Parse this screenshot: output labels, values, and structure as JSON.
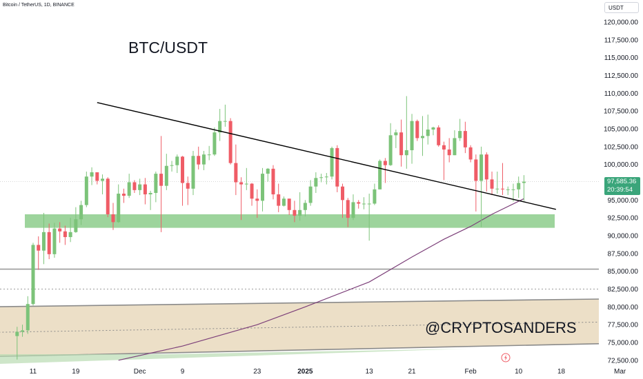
{
  "symbol": "Bitcoin / TetherUS, 1D, BINANCE",
  "currency": "USDT",
  "current_price": "97,585.36",
  "countdown": "20:39:54",
  "headline": "BTC/USDT",
  "watermark": "@CRYPTOSANDERS",
  "colors": {
    "up": "#7cc379",
    "down": "#ef5c66",
    "ma": "#7c3f79",
    "support_zone": "#8ccd8b",
    "range_band": "#e6d4b4",
    "price_tag": "#3aa57a"
  },
  "chart_data": {
    "type": "candlestick",
    "title": "BTC/USDT",
    "ylim": [
      72500,
      121500
    ],
    "y_ticks": [
      "120,000.00",
      "117,500.00",
      "115,000.00",
      "112,500.00",
      "110,000.00",
      "107,500.00",
      "105,000.00",
      "102,500.00",
      "100,000.00",
      "97,500.00",
      "95,000.00",
      "92,500.00",
      "90,000.00",
      "87,500.00",
      "85,000.00",
      "82,500.00",
      "80,000.00",
      "77,500.00",
      "75,000.00",
      "72,500.00"
    ],
    "x_labels": [
      "11",
      "19",
      "Dec",
      "9",
      "23",
      "2025",
      "13",
      "21",
      "Feb",
      "10",
      "18",
      "Mar"
    ],
    "candles": [
      {
        "date": "2024-11-08",
        "o": 75900,
        "h": 77200,
        "l": 72600,
        "c": 76500
      },
      {
        "date": "2024-11-09",
        "o": 76500,
        "h": 77500,
        "l": 75800,
        "c": 76700
      },
      {
        "date": "2024-11-10",
        "o": 76700,
        "h": 81500,
        "l": 76200,
        "c": 80400
      },
      {
        "date": "2024-11-11",
        "o": 80400,
        "h": 89000,
        "l": 80200,
        "c": 88700
      },
      {
        "date": "2024-11-12",
        "o": 88700,
        "h": 89900,
        "l": 85200,
        "c": 87900
      },
      {
        "date": "2024-11-13",
        "o": 87900,
        "h": 93200,
        "l": 86000,
        "c": 90500
      },
      {
        "date": "2024-11-14",
        "o": 90500,
        "h": 91700,
        "l": 86700,
        "c": 87400
      },
      {
        "date": "2024-11-15",
        "o": 87400,
        "h": 91800,
        "l": 86900,
        "c": 91000
      },
      {
        "date": "2024-11-16",
        "o": 91000,
        "h": 91900,
        "l": 89000,
        "c": 90600
      },
      {
        "date": "2024-11-17",
        "o": 90600,
        "h": 91400,
        "l": 88700,
        "c": 89800
      },
      {
        "date": "2024-11-18",
        "o": 89800,
        "h": 92500,
        "l": 89100,
        "c": 90500
      },
      {
        "date": "2024-11-19",
        "o": 90500,
        "h": 94000,
        "l": 90400,
        "c": 92300
      },
      {
        "date": "2024-11-20",
        "o": 92300,
        "h": 94900,
        "l": 91500,
        "c": 94300
      },
      {
        "date": "2024-11-21",
        "o": 94300,
        "h": 99000,
        "l": 94000,
        "c": 98300
      },
      {
        "date": "2024-11-22",
        "o": 98300,
        "h": 99600,
        "l": 97100,
        "c": 98900
      },
      {
        "date": "2024-11-23",
        "o": 98900,
        "h": 98900,
        "l": 97200,
        "c": 97700
      },
      {
        "date": "2024-11-24",
        "o": 97700,
        "h": 98600,
        "l": 95800,
        "c": 98000
      },
      {
        "date": "2024-11-25",
        "o": 98000,
        "h": 98200,
        "l": 92600,
        "c": 93000
      },
      {
        "date": "2024-11-26",
        "o": 93000,
        "h": 94600,
        "l": 90800,
        "c": 91900
      },
      {
        "date": "2024-11-27",
        "o": 91900,
        "h": 97200,
        "l": 91800,
        "c": 95900
      },
      {
        "date": "2024-11-28",
        "o": 95900,
        "h": 96600,
        "l": 94600,
        "c": 95600
      },
      {
        "date": "2024-11-29",
        "o": 95600,
        "h": 98700,
        "l": 95300,
        "c": 97500
      },
      {
        "date": "2024-11-30",
        "o": 97500,
        "h": 97800,
        "l": 96000,
        "c": 96400
      },
      {
        "date": "2024-12-01",
        "o": 96400,
        "h": 98000,
        "l": 95700,
        "c": 97200
      },
      {
        "date": "2024-12-02",
        "o": 97200,
        "h": 98100,
        "l": 94400,
        "c": 95800
      },
      {
        "date": "2024-12-03",
        "o": 95800,
        "h": 96300,
        "l": 93600,
        "c": 96000
      },
      {
        "date": "2024-12-04",
        "o": 96000,
        "h": 99000,
        "l": 94700,
        "c": 98700
      },
      {
        "date": "2024-12-05",
        "o": 98700,
        "h": 104000,
        "l": 90500,
        "c": 97000
      },
      {
        "date": "2024-12-06",
        "o": 97000,
        "h": 101500,
        "l": 96400,
        "c": 99800
      },
      {
        "date": "2024-12-07",
        "o": 99800,
        "h": 100500,
        "l": 99000,
        "c": 99900
      },
      {
        "date": "2024-12-08",
        "o": 99900,
        "h": 101400,
        "l": 98800,
        "c": 101100
      },
      {
        "date": "2024-12-09",
        "o": 101100,
        "h": 101200,
        "l": 94200,
        "c": 97400
      },
      {
        "date": "2024-12-10",
        "o": 97400,
        "h": 98300,
        "l": 94300,
        "c": 96600
      },
      {
        "date": "2024-12-11",
        "o": 96600,
        "h": 101900,
        "l": 95700,
        "c": 101200
      },
      {
        "date": "2024-12-12",
        "o": 101200,
        "h": 102500,
        "l": 99300,
        "c": 100000
      },
      {
        "date": "2024-12-13",
        "o": 100000,
        "h": 101900,
        "l": 99200,
        "c": 101400
      },
      {
        "date": "2024-12-14",
        "o": 101400,
        "h": 102600,
        "l": 100600,
        "c": 101400
      },
      {
        "date": "2024-12-15",
        "o": 101400,
        "h": 105200,
        "l": 101200,
        "c": 104500
      },
      {
        "date": "2024-12-16",
        "o": 104500,
        "h": 107800,
        "l": 103300,
        "c": 106100
      },
      {
        "date": "2024-12-17",
        "o": 106100,
        "h": 108400,
        "l": 105300,
        "c": 106100
      },
      {
        "date": "2024-12-18",
        "o": 106100,
        "h": 106500,
        "l": 100000,
        "c": 100200
      },
      {
        "date": "2024-12-19",
        "o": 100200,
        "h": 102800,
        "l": 95700,
        "c": 97500
      },
      {
        "date": "2024-12-20",
        "o": 97500,
        "h": 98200,
        "l": 92200,
        "c": 97200
      },
      {
        "date": "2024-12-21",
        "o": 97200,
        "h": 99500,
        "l": 96400,
        "c": 97300
      },
      {
        "date": "2024-12-22",
        "o": 97300,
        "h": 97400,
        "l": 94200,
        "c": 95200
      },
      {
        "date": "2024-12-23",
        "o": 95200,
        "h": 96500,
        "l": 92500,
        "c": 94900
      },
      {
        "date": "2024-12-24",
        "o": 94900,
        "h": 99500,
        "l": 93400,
        "c": 98700
      },
      {
        "date": "2024-12-25",
        "o": 98700,
        "h": 99500,
        "l": 97600,
        "c": 99400
      },
      {
        "date": "2024-12-26",
        "o": 99400,
        "h": 99900,
        "l": 95100,
        "c": 95800
      },
      {
        "date": "2024-12-27",
        "o": 95800,
        "h": 97300,
        "l": 93300,
        "c": 94200
      },
      {
        "date": "2024-12-28",
        "o": 94200,
        "h": 95500,
        "l": 94100,
        "c": 95200
      },
      {
        "date": "2024-12-29",
        "o": 95200,
        "h": 95200,
        "l": 92900,
        "c": 93600
      },
      {
        "date": "2024-12-30",
        "o": 93600,
        "h": 94900,
        "l": 91900,
        "c": 92800
      },
      {
        "date": "2024-12-31",
        "o": 92800,
        "h": 96100,
        "l": 92100,
        "c": 93600
      },
      {
        "date": "2025-01-01",
        "o": 93600,
        "h": 95000,
        "l": 92700,
        "c": 94600
      },
      {
        "date": "2025-01-02",
        "o": 94600,
        "h": 97800,
        "l": 94200,
        "c": 96900
      },
      {
        "date": "2025-01-03",
        "o": 96900,
        "h": 98900,
        "l": 96000,
        "c": 98100
      },
      {
        "date": "2025-01-04",
        "o": 98100,
        "h": 98700,
        "l": 97500,
        "c": 98200
      },
      {
        "date": "2025-01-05",
        "o": 98200,
        "h": 98800,
        "l": 97200,
        "c": 98300
      },
      {
        "date": "2025-01-06",
        "o": 98300,
        "h": 102500,
        "l": 97900,
        "c": 102300
      },
      {
        "date": "2025-01-07",
        "o": 102300,
        "h": 102700,
        "l": 96100,
        "c": 96900
      },
      {
        "date": "2025-01-08",
        "o": 96900,
        "h": 97300,
        "l": 92500,
        "c": 95000
      },
      {
        "date": "2025-01-09",
        "o": 95000,
        "h": 95300,
        "l": 91200,
        "c": 92500
      },
      {
        "date": "2025-01-10",
        "o": 92500,
        "h": 95800,
        "l": 92200,
        "c": 94700
      },
      {
        "date": "2025-01-11",
        "o": 94700,
        "h": 95000,
        "l": 93800,
        "c": 94500
      },
      {
        "date": "2025-01-12",
        "o": 94500,
        "h": 95400,
        "l": 93700,
        "c": 94500
      },
      {
        "date": "2025-01-13",
        "o": 94500,
        "h": 95900,
        "l": 89300,
        "c": 94500
      },
      {
        "date": "2025-01-14",
        "o": 94500,
        "h": 97300,
        "l": 94300,
        "c": 96500
      },
      {
        "date": "2025-01-15",
        "o": 96500,
        "h": 100700,
        "l": 96500,
        "c": 100500
      },
      {
        "date": "2025-01-16",
        "o": 100500,
        "h": 100900,
        "l": 97400,
        "c": 99900
      },
      {
        "date": "2025-01-17",
        "o": 99900,
        "h": 105800,
        "l": 99800,
        "c": 104100
      },
      {
        "date": "2025-01-18",
        "o": 104100,
        "h": 104900,
        "l": 102300,
        "c": 104500
      },
      {
        "date": "2025-01-19",
        "o": 104500,
        "h": 106300,
        "l": 99700,
        "c": 101300
      },
      {
        "date": "2025-01-20",
        "o": 101300,
        "h": 109600,
        "l": 99400,
        "c": 102000
      },
      {
        "date": "2025-01-21",
        "o": 102000,
        "h": 107100,
        "l": 100100,
        "c": 106100
      },
      {
        "date": "2025-01-22",
        "o": 106100,
        "h": 106300,
        "l": 103300,
        "c": 103700
      },
      {
        "date": "2025-01-23",
        "o": 103700,
        "h": 106800,
        "l": 101200,
        "c": 104000
      },
      {
        "date": "2025-01-24",
        "o": 104000,
        "h": 107000,
        "l": 102800,
        "c": 104900
      },
      {
        "date": "2025-01-25",
        "o": 104900,
        "h": 105300,
        "l": 104100,
        "c": 105200
      },
      {
        "date": "2025-01-26",
        "o": 105200,
        "h": 105500,
        "l": 102500,
        "c": 102700
      },
      {
        "date": "2025-01-27",
        "o": 102700,
        "h": 103200,
        "l": 97800,
        "c": 102100
      },
      {
        "date": "2025-01-28",
        "o": 102100,
        "h": 103700,
        "l": 100300,
        "c": 101300
      },
      {
        "date": "2025-01-29",
        "o": 101300,
        "h": 104800,
        "l": 101300,
        "c": 103700
      },
      {
        "date": "2025-01-30",
        "o": 103700,
        "h": 106400,
        "l": 103300,
        "c": 104700
      },
      {
        "date": "2025-01-31",
        "o": 104700,
        "h": 106000,
        "l": 101600,
        "c": 102400
      },
      {
        "date": "2025-02-01",
        "o": 102400,
        "h": 102700,
        "l": 100300,
        "c": 100700
      },
      {
        "date": "2025-02-02",
        "o": 100700,
        "h": 101400,
        "l": 93400,
        "c": 97700
      },
      {
        "date": "2025-02-03",
        "o": 97700,
        "h": 102500,
        "l": 91200,
        "c": 101400
      },
      {
        "date": "2025-02-04",
        "o": 101400,
        "h": 101700,
        "l": 96200,
        "c": 97900
      },
      {
        "date": "2025-02-05",
        "o": 97900,
        "h": 99000,
        "l": 95700,
        "c": 96600
      },
      {
        "date": "2025-02-06",
        "o": 96600,
        "h": 99000,
        "l": 95900,
        "c": 96600
      },
      {
        "date": "2025-02-07",
        "o": 96600,
        "h": 100200,
        "l": 95700,
        "c": 96500
      },
      {
        "date": "2025-02-08",
        "o": 96500,
        "h": 96900,
        "l": 95700,
        "c": 96500
      },
      {
        "date": "2025-02-09",
        "o": 96500,
        "h": 97300,
        "l": 94800,
        "c": 96500
      },
      {
        "date": "2025-02-10",
        "o": 96500,
        "h": 98300,
        "l": 95300,
        "c": 97400
      },
      {
        "date": "2025-02-11",
        "o": 97400,
        "h": 98500,
        "l": 94900,
        "c": 97585.36
      }
    ],
    "moving_average": [
      {
        "date": "2024-11-27",
        "value": 72500
      },
      {
        "date": "2024-12-09",
        "value": 74500
      },
      {
        "date": "2024-12-23",
        "value": 77500
      },
      {
        "date": "2025-01-01",
        "value": 80000
      },
      {
        "date": "2025-01-13",
        "value": 83500
      },
      {
        "date": "2025-01-21",
        "value": 87000
      },
      {
        "date": "2025-01-27",
        "value": 89500
      },
      {
        "date": "2025-02-01",
        "value": 91300
      },
      {
        "date": "2025-02-05",
        "value": 93000
      },
      {
        "date": "2025-02-11",
        "value": 95200
      }
    ],
    "trendline": [
      {
        "date": "2024-11-23",
        "value": 108700
      },
      {
        "date": "2025-02-17",
        "value": 93700
      }
    ],
    "support_zone": [
      91100,
      93000
    ],
    "horizontal_levels": [
      85300,
      82500
    ],
    "range_band": {
      "upper": [
        {
          "date": "2024-11-02",
          "value": 80000
        },
        {
          "date": "2025-03-08",
          "value": 81200
        }
      ],
      "lower": [
        {
          "date": "2024-11-02",
          "value": 73000
        },
        {
          "date": "2025-03-08",
          "value": 75000
        }
      ],
      "midline": [
        {
          "date": "2024-11-02",
          "value": 76400
        },
        {
          "date": "2025-03-08",
          "value": 78000
        }
      ]
    },
    "last_price_line": 97585.36
  }
}
